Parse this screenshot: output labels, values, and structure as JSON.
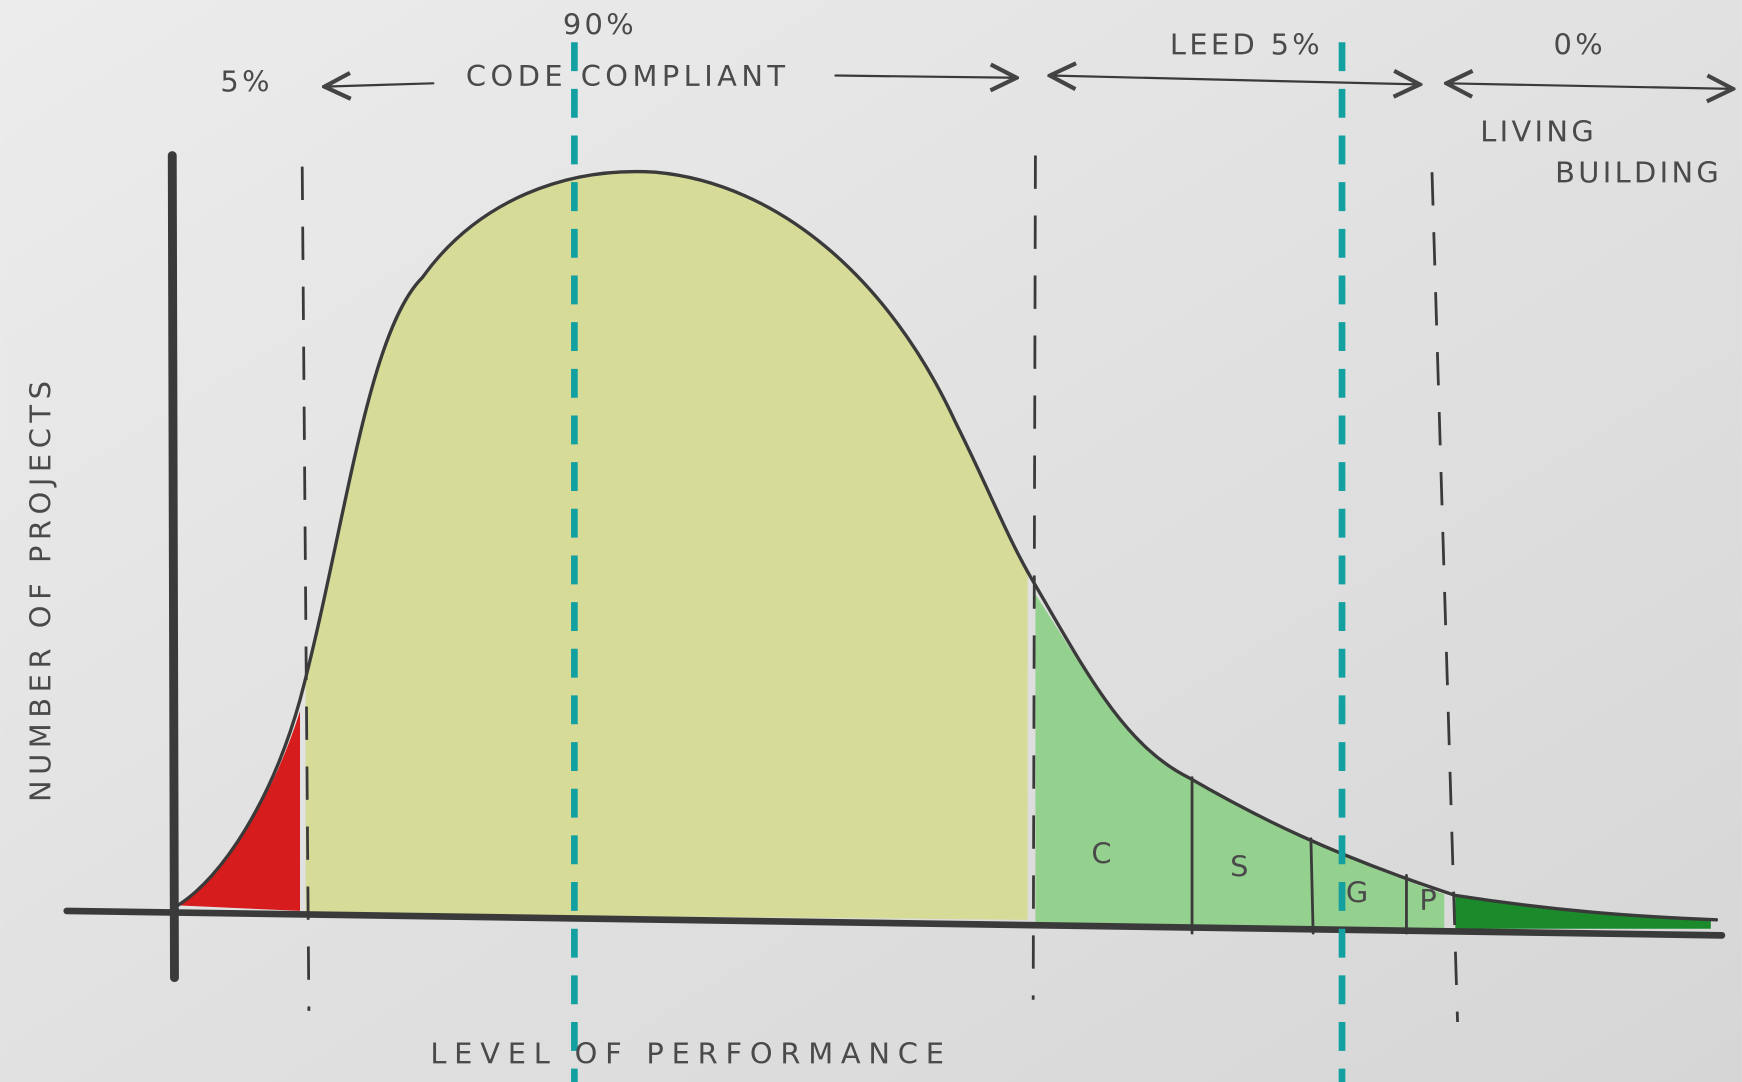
{
  "labels": {
    "below_code": "5%",
    "code_compliant": "CODE COMPLIANT",
    "code_share": "90%",
    "leed": "LEED 5%",
    "living_share": "0%",
    "living_building": [
      "LIVING",
      "BUILDING"
    ]
  },
  "axes": {
    "y": "NUMBER OF PROJECTS",
    "x": "LEVEL OF PERFORMANCE"
  },
  "segments": [
    "C",
    "S",
    "G",
    "P"
  ]
}
